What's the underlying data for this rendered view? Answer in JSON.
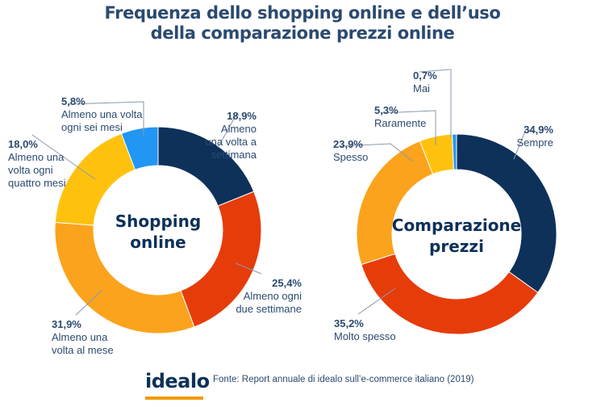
{
  "title": {
    "line1": "Frequenza dello shopping online e dell’uso",
    "line2": "della comparazione prezzi online"
  },
  "chart_data": [
    {
      "type": "pie",
      "donut": true,
      "center_label": [
        "Shopping",
        "online"
      ],
      "slices": [
        {
          "value": 18.9,
          "pct": "18,9%",
          "label": [
            "Almeno",
            "una volta a",
            "settimana"
          ],
          "color": "#0d3159"
        },
        {
          "value": 25.4,
          "pct": "25,4%",
          "label": [
            "Almeno ogni",
            "due settimane"
          ],
          "color": "#e63c0a"
        },
        {
          "value": 31.9,
          "pct": "31,9%",
          "label": [
            "Almeno una",
            "volta al mese"
          ],
          "color": "#fba31c"
        },
        {
          "value": 18.0,
          "pct": "18,0%",
          "label": [
            "Almeno una",
            "volta ogni",
            "quattro mesi"
          ],
          "color": "#fec20e"
        },
        {
          "value": 5.8,
          "pct": "5,8%",
          "label": [
            "Almeno una volta",
            "ogni sei mesi"
          ],
          "color": "#2196f3"
        }
      ]
    },
    {
      "type": "pie",
      "donut": true,
      "center_label": [
        "Comparazione",
        "prezzi"
      ],
      "slices": [
        {
          "value": 34.9,
          "pct": "34,9%",
          "label": [
            "Sempre"
          ],
          "color": "#0d3159"
        },
        {
          "value": 35.2,
          "pct": "35,2%",
          "label": [
            "Molto spesso"
          ],
          "color": "#e63c0a"
        },
        {
          "value": 23.9,
          "pct": "23,9%",
          "label": [
            "Spesso"
          ],
          "color": "#fba31c"
        },
        {
          "value": 5.3,
          "pct": "5,3%",
          "label": [
            "Raramente"
          ],
          "color": "#fec20e"
        },
        {
          "value": 0.7,
          "pct": "0,7%",
          "label": [
            "Mai"
          ],
          "color": "#2196f3"
        }
      ]
    }
  ],
  "footer": {
    "logo": "idealo",
    "source": "Fonte: Report annuale di idealo sull’e-commerce italiano (2019)"
  }
}
